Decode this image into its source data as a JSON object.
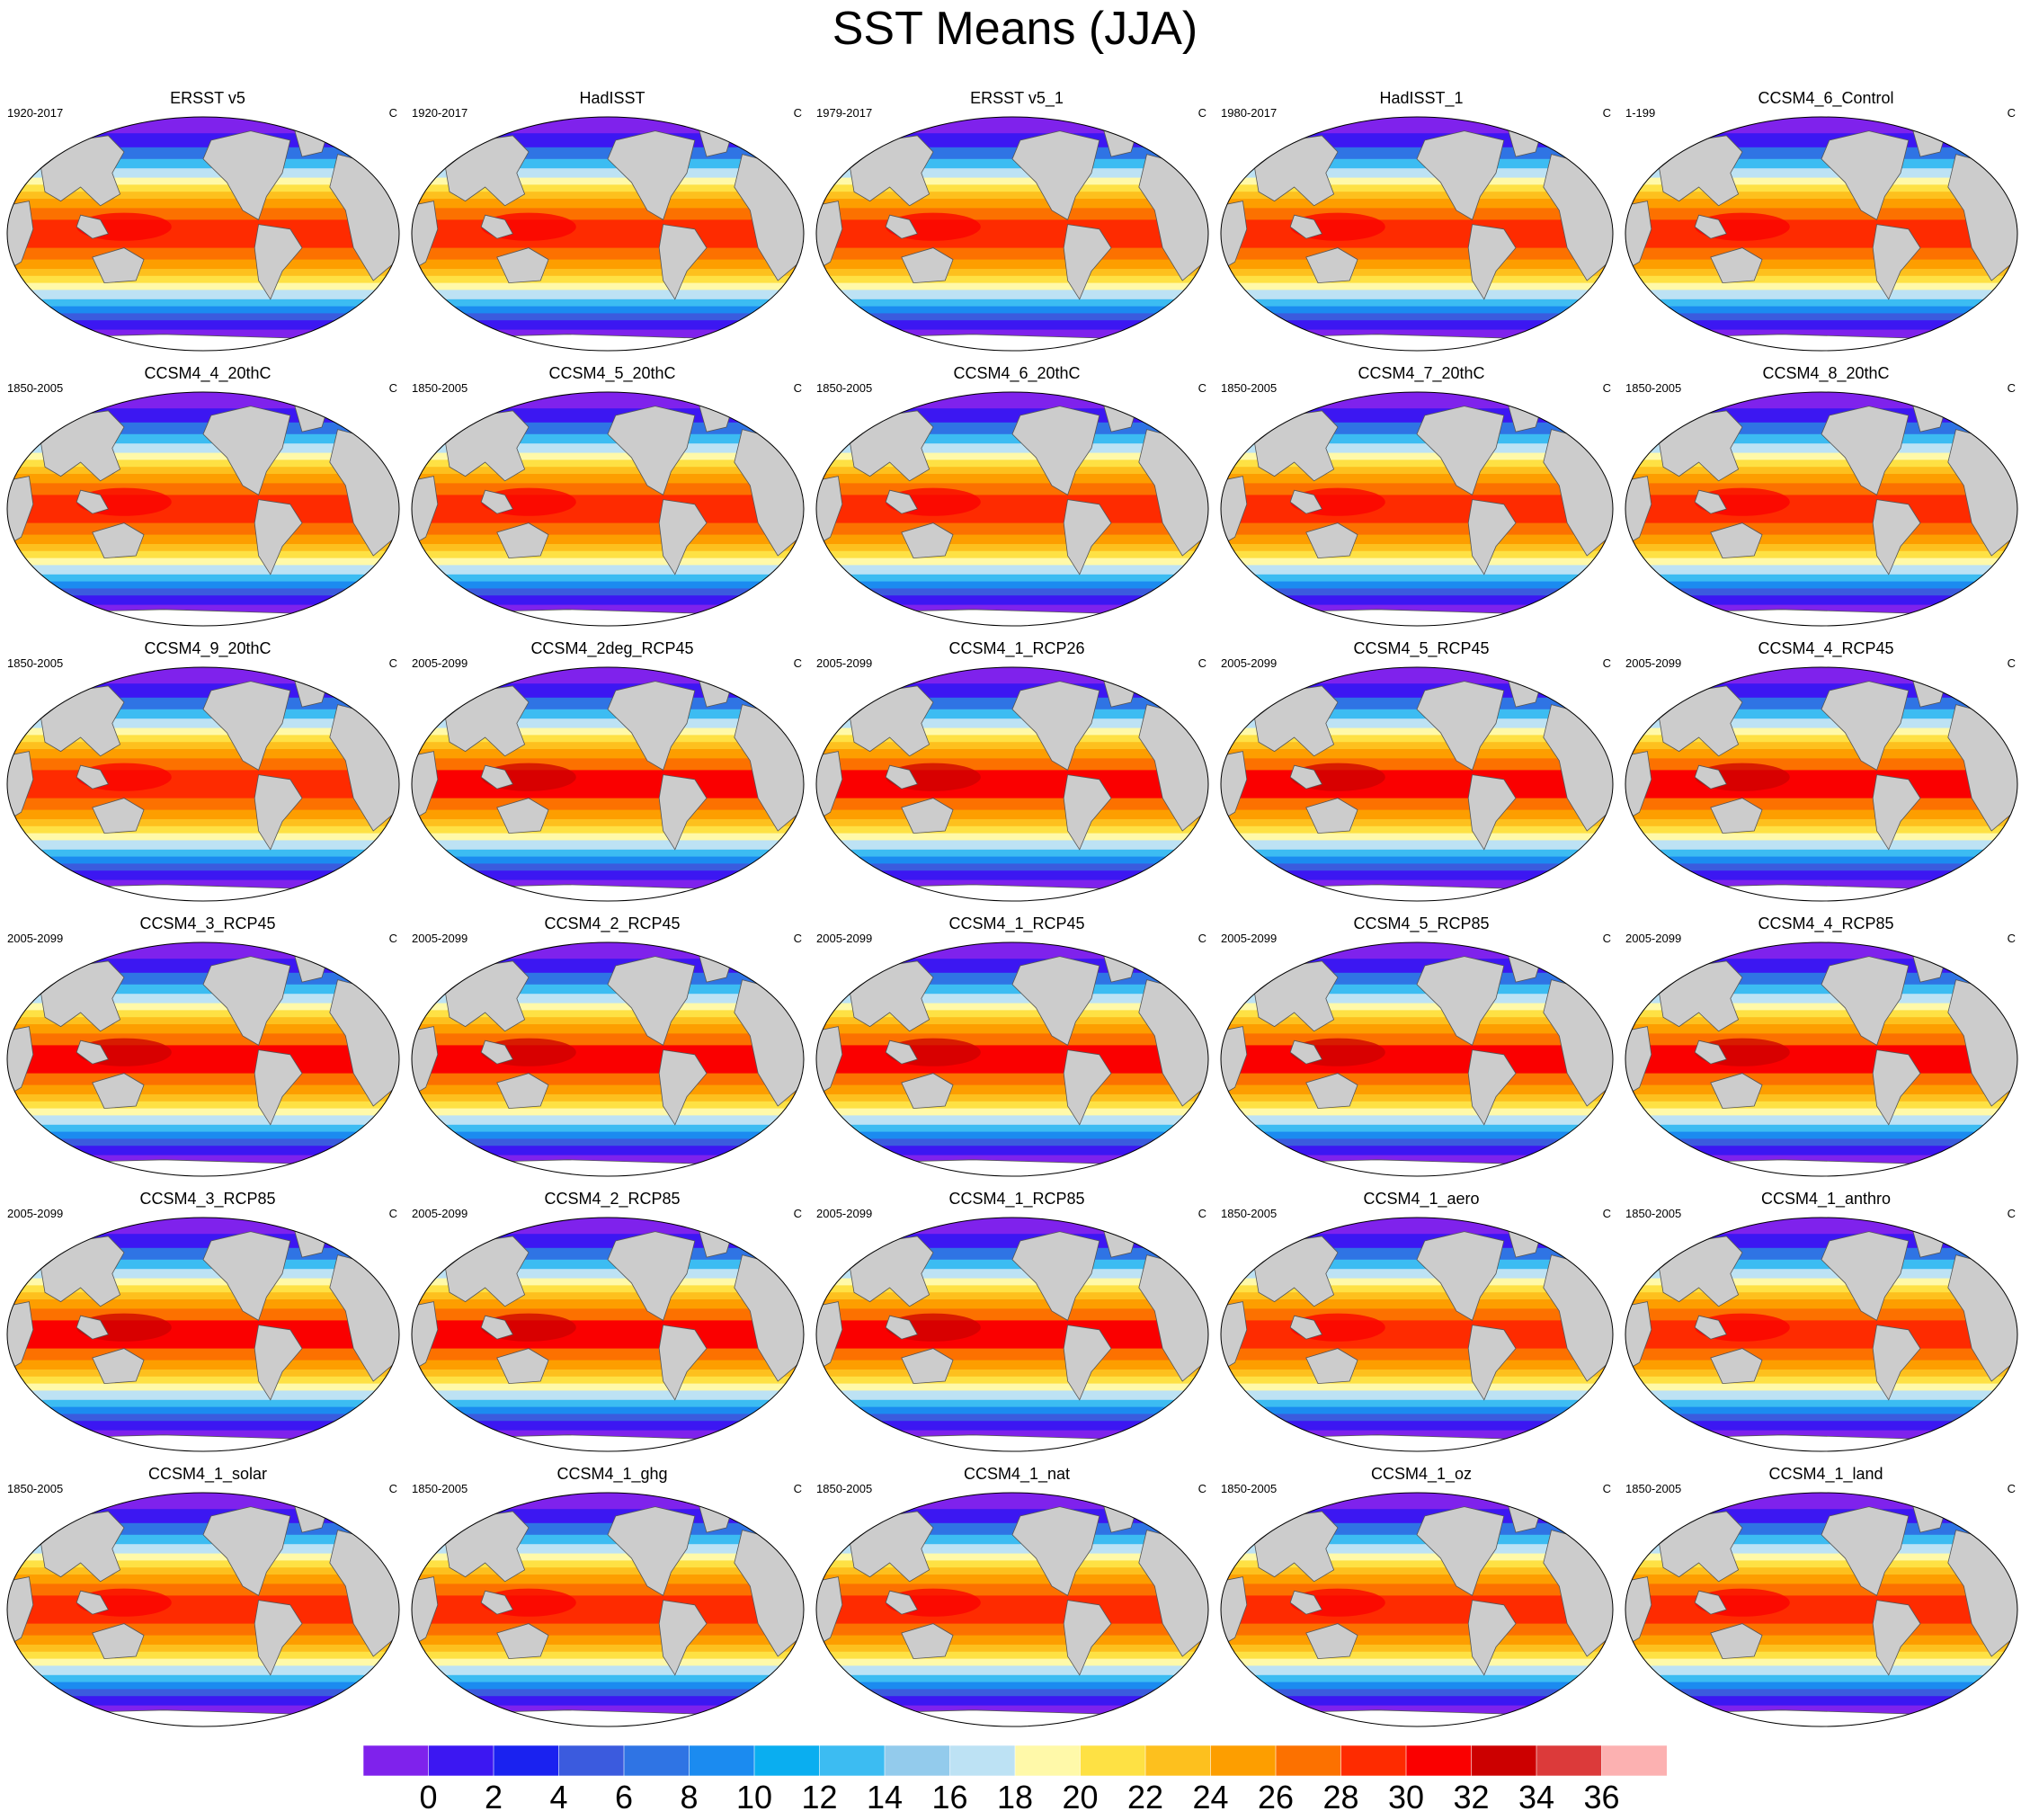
{
  "title": "SST Means (JJA)",
  "units": "C",
  "colors": {
    "land": "#cccccc",
    "outline": "#555555",
    "ice": "#ffffff"
  },
  "colorbar": {
    "colors": [
      "#7f22ec",
      "#3c17f2",
      "#1a22f0",
      "#3b5bde",
      "#2f74e4",
      "#1b8bf0",
      "#0aaef0",
      "#3cbcf2",
      "#93cbec",
      "#bde2f4",
      "#fff9a9",
      "#fee144",
      "#fdc01e",
      "#fd9e00",
      "#fc7100",
      "#fe2b00",
      "#fa0000",
      "#cc0000",
      "#dc3a3a",
      "#fcb1b1"
    ],
    "labels": [
      "0",
      "2",
      "4",
      "6",
      "8",
      "10",
      "12",
      "14",
      "16",
      "18",
      "20",
      "22",
      "24",
      "26",
      "28",
      "30",
      "32",
      "34",
      "36"
    ]
  },
  "panels": [
    {
      "name": "ERSST v5",
      "years": "1920-2017"
    },
    {
      "name": "HadISST",
      "years": "1920-2017"
    },
    {
      "name": "ERSST v5_1",
      "years": "1979-2017"
    },
    {
      "name": "HadISST_1",
      "years": "1980-2017"
    },
    {
      "name": "CCSM4_6_Control",
      "years": "1-199"
    },
    {
      "name": "CCSM4_4_20thC",
      "years": "1850-2005"
    },
    {
      "name": "CCSM4_5_20thC",
      "years": "1850-2005"
    },
    {
      "name": "CCSM4_6_20thC",
      "years": "1850-2005"
    },
    {
      "name": "CCSM4_7_20thC",
      "years": "1850-2005"
    },
    {
      "name": "CCSM4_8_20thC",
      "years": "1850-2005"
    },
    {
      "name": "CCSM4_9_20thC",
      "years": "1850-2005"
    },
    {
      "name": "CCSM4_2deg_RCP45",
      "years": "2005-2099"
    },
    {
      "name": "CCSM4_1_RCP26",
      "years": "2005-2099"
    },
    {
      "name": "CCSM4_5_RCP45",
      "years": "2005-2099"
    },
    {
      "name": "CCSM4_4_RCP45",
      "years": "2005-2099"
    },
    {
      "name": "CCSM4_3_RCP45",
      "years": "2005-2099"
    },
    {
      "name": "CCSM4_2_RCP45",
      "years": "2005-2099"
    },
    {
      "name": "CCSM4_1_RCP45",
      "years": "2005-2099"
    },
    {
      "name": "CCSM4_5_RCP85",
      "years": "2005-2099"
    },
    {
      "name": "CCSM4_4_RCP85",
      "years": "2005-2099"
    },
    {
      "name": "CCSM4_3_RCP85",
      "years": "2005-2099"
    },
    {
      "name": "CCSM4_2_RCP85",
      "years": "2005-2099"
    },
    {
      "name": "CCSM4_1_RCP85",
      "years": "2005-2099"
    },
    {
      "name": "CCSM4_1_aero",
      "years": "1850-2005"
    },
    {
      "name": "CCSM4_1_anthro",
      "years": "1850-2005"
    },
    {
      "name": "CCSM4_1_solar",
      "years": "1850-2005"
    },
    {
      "name": "CCSM4_1_ghg",
      "years": "1850-2005"
    },
    {
      "name": "CCSM4_1_nat",
      "years": "1850-2005"
    },
    {
      "name": "CCSM4_1_oz",
      "years": "1850-2005"
    },
    {
      "name": "CCSM4_1_land",
      "years": "1850-2005"
    }
  ]
}
